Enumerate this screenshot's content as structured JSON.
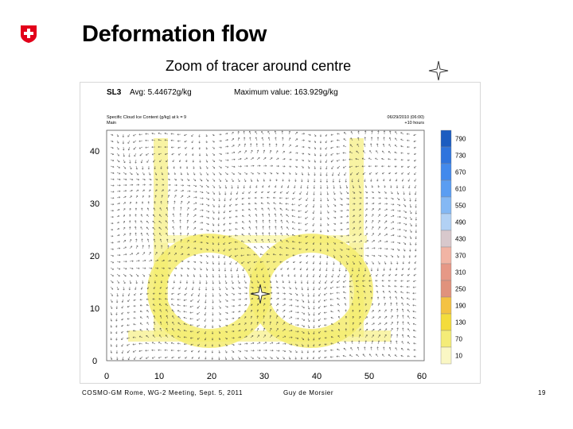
{
  "slide": {
    "title": "Deformation flow",
    "subtitle": "Zoom of tracer around centre",
    "logo_icon": "swiss-cross-icon",
    "star_icon": "four-point-star-icon"
  },
  "plot": {
    "header_id": "SL3",
    "avg_text": "Avg: 5.44672g/kg",
    "max_text": "Maximum value: 163.929g/kg",
    "field_text": "Specific Cloud Ice Content (g/kg) at k = 9",
    "member_text": "Main",
    "date_text": "06/29/2010 (06:00)",
    "lead_text": "+10 hours",
    "x_ticks": [
      "0",
      "10",
      "20",
      "30",
      "40",
      "50",
      "60"
    ],
    "y_ticks": [
      "0",
      "10",
      "20",
      "30",
      "40"
    ],
    "colorbar_labels": [
      "790",
      "730",
      "670",
      "610",
      "550",
      "490",
      "430",
      "370",
      "310",
      "250",
      "190",
      "130",
      "70",
      "10"
    ]
  },
  "footer": {
    "left": "COSMO-GM Rome, WG-2 Meeting, Sept. 5, 2011",
    "middle": "Guy de Morsier",
    "page": "19"
  },
  "colors": {
    "swiss_red": "#e2001a",
    "tracer_light": "#fbf7b0",
    "tracer_mid": "#f4ec6e",
    "colorbar": [
      "#1c5cc0",
      "#2f74dd",
      "#4289ec",
      "#5a9df2",
      "#84b8f4",
      "#b2d1f4",
      "#d8c8cc",
      "#f1b4a4",
      "#e69886",
      "#e0927c",
      "#f4c242",
      "#f4dc3c",
      "#f4ec78",
      "#faf7c4"
    ]
  }
}
